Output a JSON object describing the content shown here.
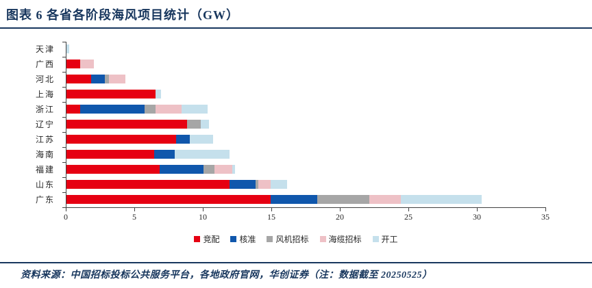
{
  "title": "图表 6  各省各阶段海风项目统计（GW）",
  "source_note": "资料来源：中国招标投标公共服务平台，各地政府官网，华创证券（注：数据截至 20250525）",
  "colors": {
    "accent_navy": "#17365d",
    "axis": "#404040",
    "text": "#262626"
  },
  "chart_data": {
    "type": "bar",
    "orientation": "horizontal",
    "stacked": true,
    "title": "各省各阶段海风项目统计（GW）",
    "categories": [
      "天津",
      "广西",
      "河北",
      "上海",
      "浙江",
      "辽宁",
      "江苏",
      "海南",
      "福建",
      "山东",
      "广东"
    ],
    "series": [
      {
        "name": "竞配",
        "color": "#e60012",
        "values": [
          0,
          1.0,
          1.8,
          6.5,
          1.0,
          8.8,
          8.0,
          6.4,
          6.8,
          11.9,
          14.9
        ]
      },
      {
        "name": "核准",
        "color": "#1057ac",
        "values": [
          0,
          0,
          1.0,
          0,
          4.7,
          0,
          1.0,
          1.5,
          3.2,
          1.9,
          3.4
        ]
      },
      {
        "name": "风机招标",
        "color": "#a6a6a6",
        "values": [
          0,
          0,
          0.3,
          0,
          0.8,
          1.0,
          0,
          0,
          0.8,
          0.2,
          3.8
        ]
      },
      {
        "name": "海缆招标",
        "color": "#eec1c6",
        "values": [
          0,
          1.0,
          1.2,
          0,
          1.9,
          0,
          0,
          0,
          1.3,
          0.9,
          2.3
        ]
      },
      {
        "name": "开工",
        "color": "#c5e0ec",
        "values": [
          0.2,
          0,
          0,
          0.4,
          1.9,
          0.6,
          1.7,
          4.0,
          0.2,
          1.2,
          5.9
        ]
      }
    ],
    "xlabel": "",
    "ylabel": "",
    "xlim": [
      0,
      35
    ],
    "xticks": [
      0,
      5,
      10,
      15,
      20,
      25,
      30,
      35
    ],
    "grid": false,
    "legend_position": "bottom"
  }
}
